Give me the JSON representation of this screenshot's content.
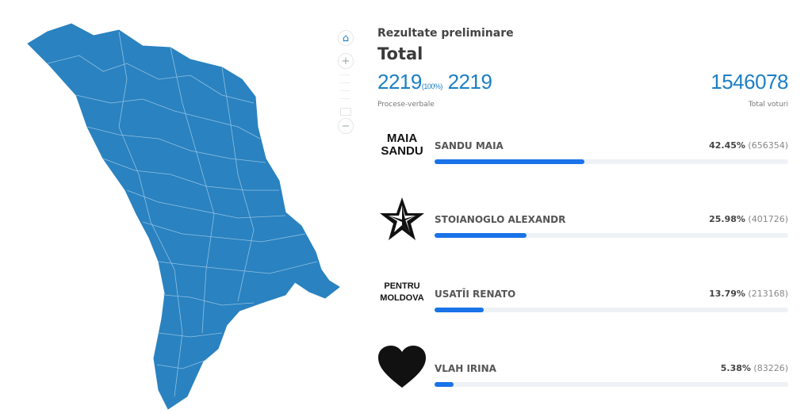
{
  "map": {
    "fill_color": "#2a82c0",
    "border_color": "#8fc0e3"
  },
  "controls": {
    "home_icon": "home-icon",
    "zoom_in": "+",
    "zoom_out": "−"
  },
  "header": {
    "subtitle": "Rezultate preliminare",
    "title": "Total",
    "processed": "2219",
    "processed_pct": "(100%)",
    "total_reports": "2219",
    "reports_label": "Procese-verbale",
    "total_votes": "1546078",
    "votes_label": "Total voturi"
  },
  "accent": "#1a73e8",
  "candidates": [
    {
      "logo_lines": [
        "MAIA",
        "SANDU"
      ],
      "name": "SANDU MAIA",
      "percent": "42.45%",
      "votes": "(656354)",
      "share": 42.45
    },
    {
      "logo_icon": "star-icon",
      "name": "STOIANOGLO ALEXANDR",
      "percent": "25.98%",
      "votes": "(401726)",
      "share": 25.98
    },
    {
      "logo_lines": [
        "PENTRU",
        "MOLDOVA"
      ],
      "name": "USATÎI RENATO",
      "percent": "13.79%",
      "votes": "(213168)",
      "share": 13.79
    },
    {
      "logo_icon": "heart-icon",
      "name": "VLAH IRINA",
      "percent": "5.38%",
      "votes": "(83226)",
      "share": 5.38
    }
  ]
}
